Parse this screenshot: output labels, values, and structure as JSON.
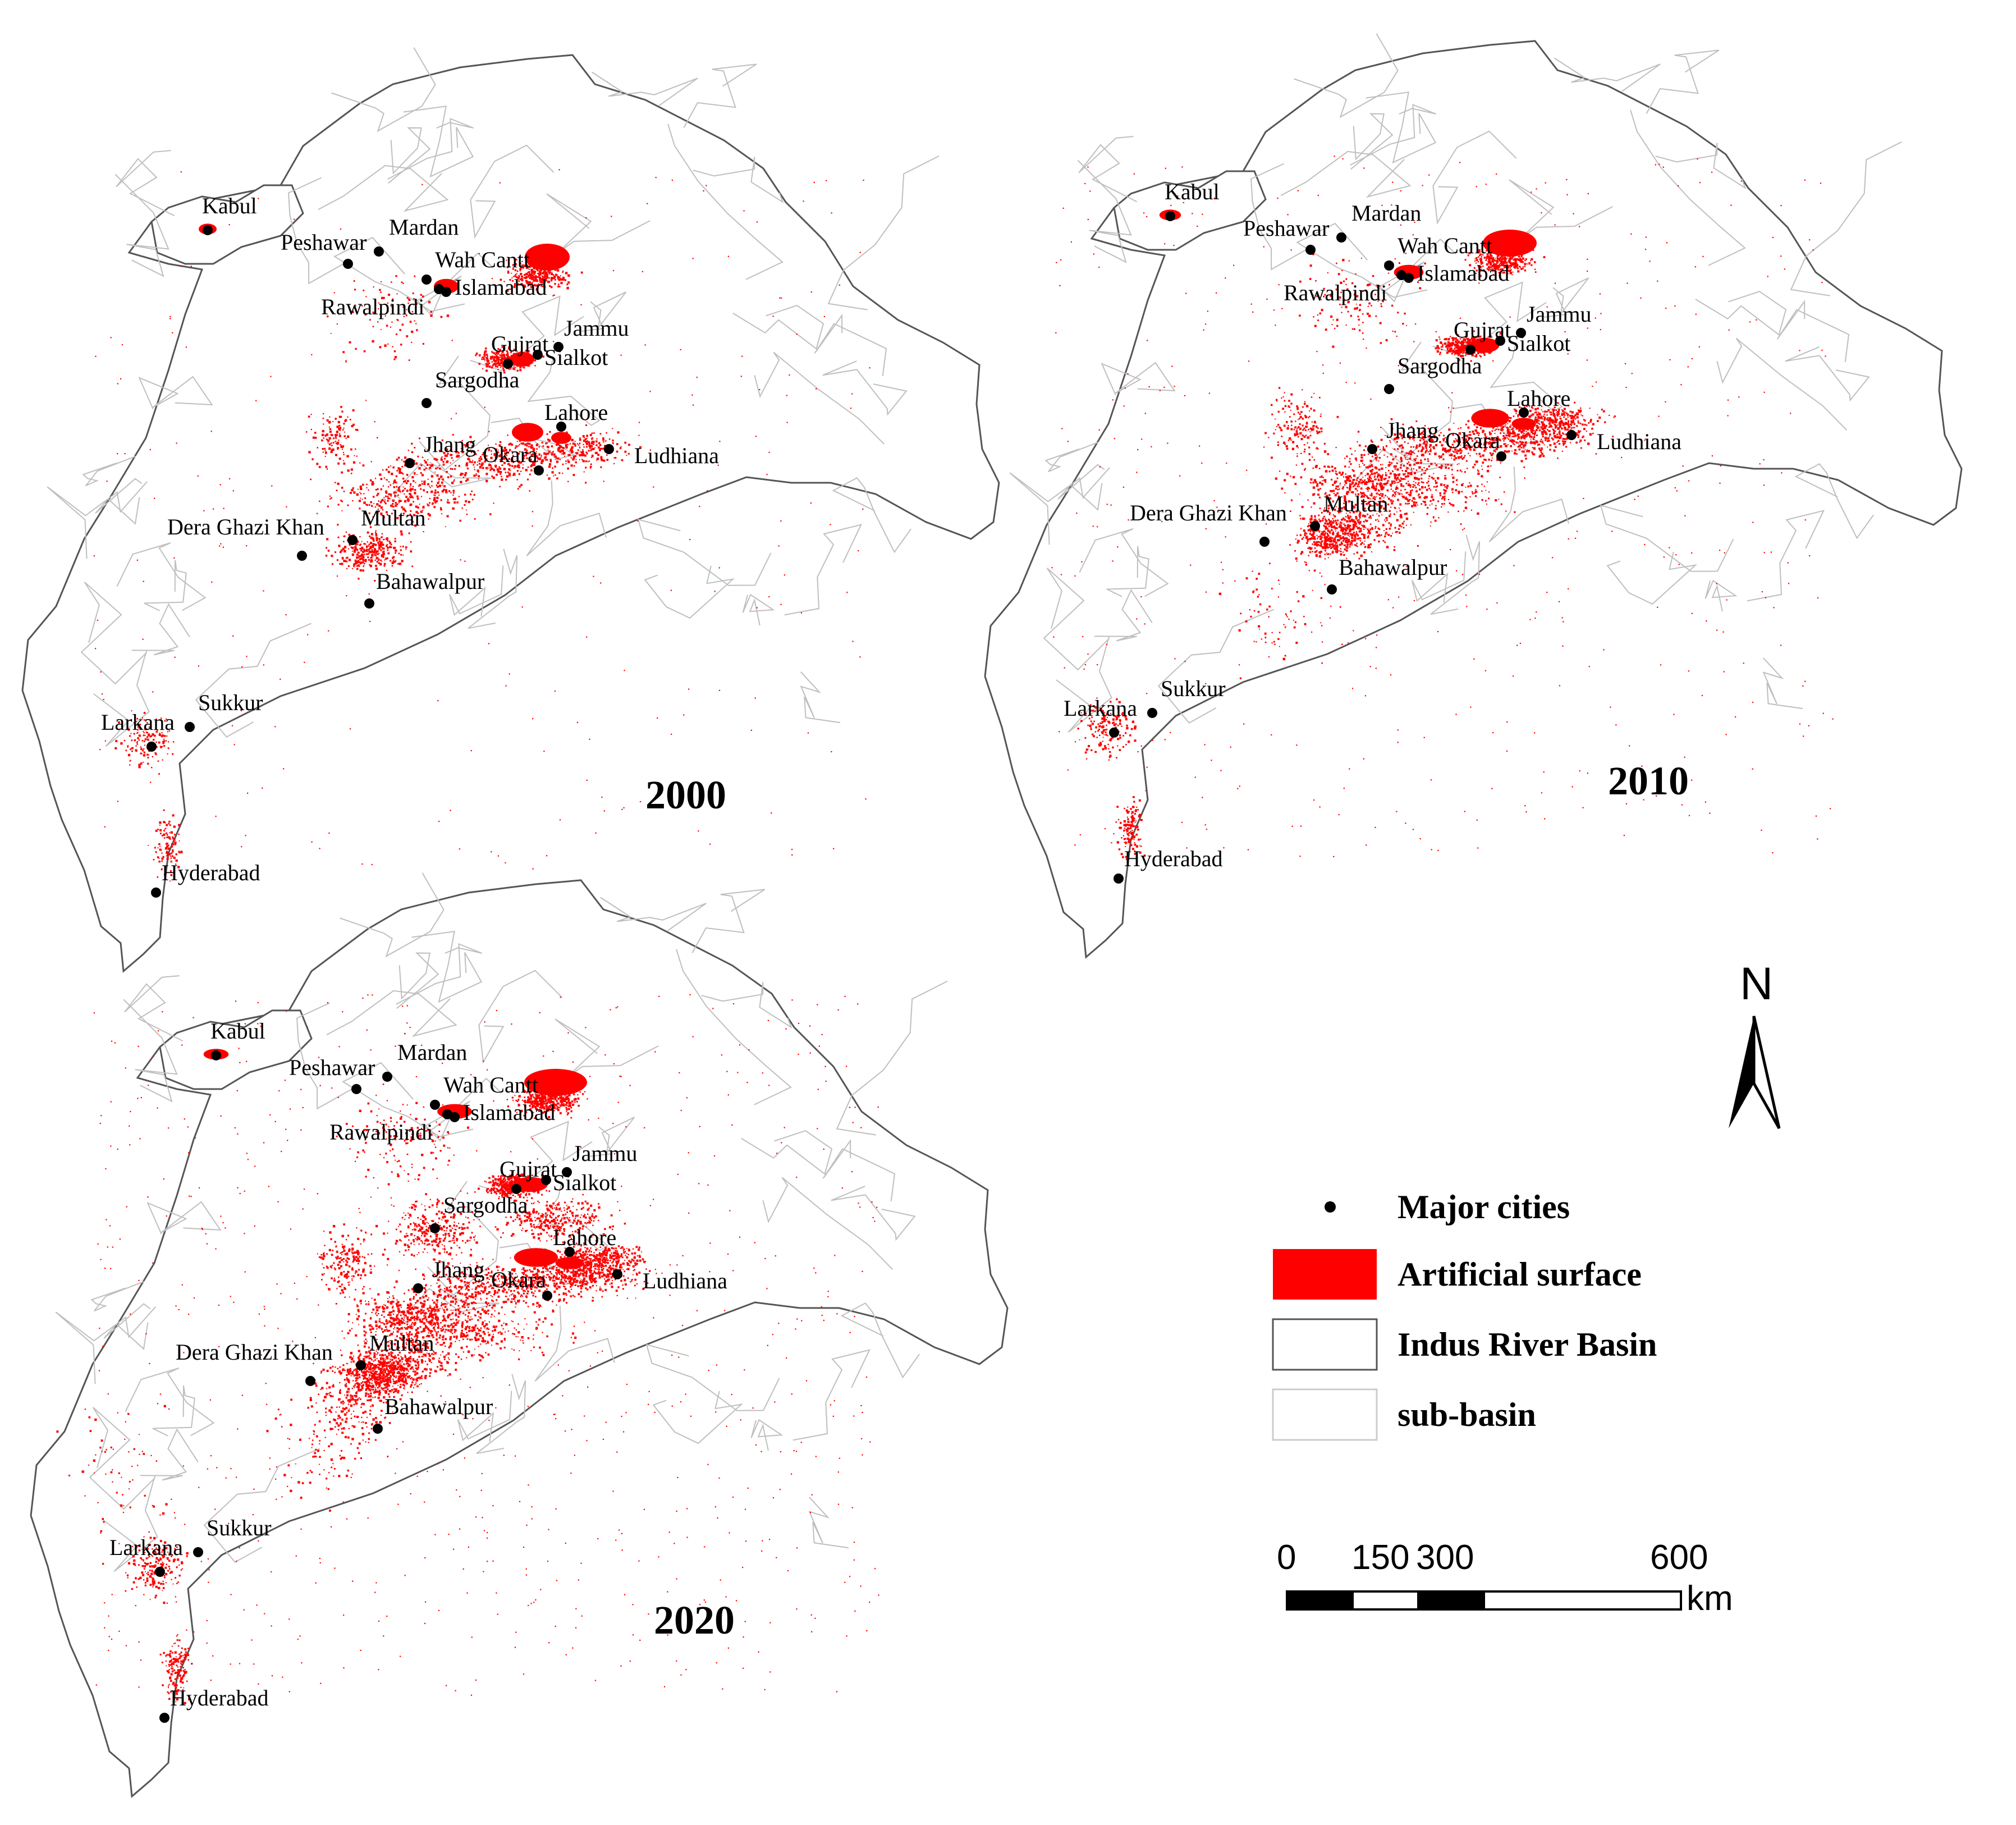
{
  "maps": [
    {
      "year": "2000",
      "urban_level": 1
    },
    {
      "year": "2010",
      "urban_level": 2
    },
    {
      "year": "2020",
      "urban_level": 3
    }
  ],
  "cities": [
    {
      "name": "Kabul"
    },
    {
      "name": "Peshawar"
    },
    {
      "name": "Mardan"
    },
    {
      "name": "Wah Cantt"
    },
    {
      "name": "Islamabad"
    },
    {
      "name": "Rawalpindi"
    },
    {
      "name": "Jammu"
    },
    {
      "name": "Gujrat"
    },
    {
      "name": "Sialkot"
    },
    {
      "name": "Sargodha"
    },
    {
      "name": "Lahore"
    },
    {
      "name": "Jhang"
    },
    {
      "name": "Ludhiana"
    },
    {
      "name": "Okara"
    },
    {
      "name": "Dera Ghazi Khan"
    },
    {
      "name": "Multan"
    },
    {
      "name": "Bahawalpur"
    },
    {
      "name": "Sukkur"
    },
    {
      "name": "Larkana"
    },
    {
      "name": "Hyderabad"
    }
  ],
  "legend": {
    "items": [
      {
        "label": "Major cities",
        "symbol": "dot"
      },
      {
        "label": "Artificial surface",
        "symbol": "fill-red"
      },
      {
        "label": "Indus River Basin",
        "symbol": "outline-dark"
      },
      {
        "label": "sub-basin",
        "symbol": "outline-light"
      }
    ]
  },
  "scale_bar": {
    "ticks": [
      "0",
      "150",
      "300",
      "600"
    ],
    "unit": "km"
  },
  "north_arrow": {
    "label": "N"
  },
  "colors": {
    "artificial_surface": "#ff0000",
    "basin_outline": "#555555",
    "subbasin_line": "#bfbfbf",
    "city_dot": "#000000"
  }
}
